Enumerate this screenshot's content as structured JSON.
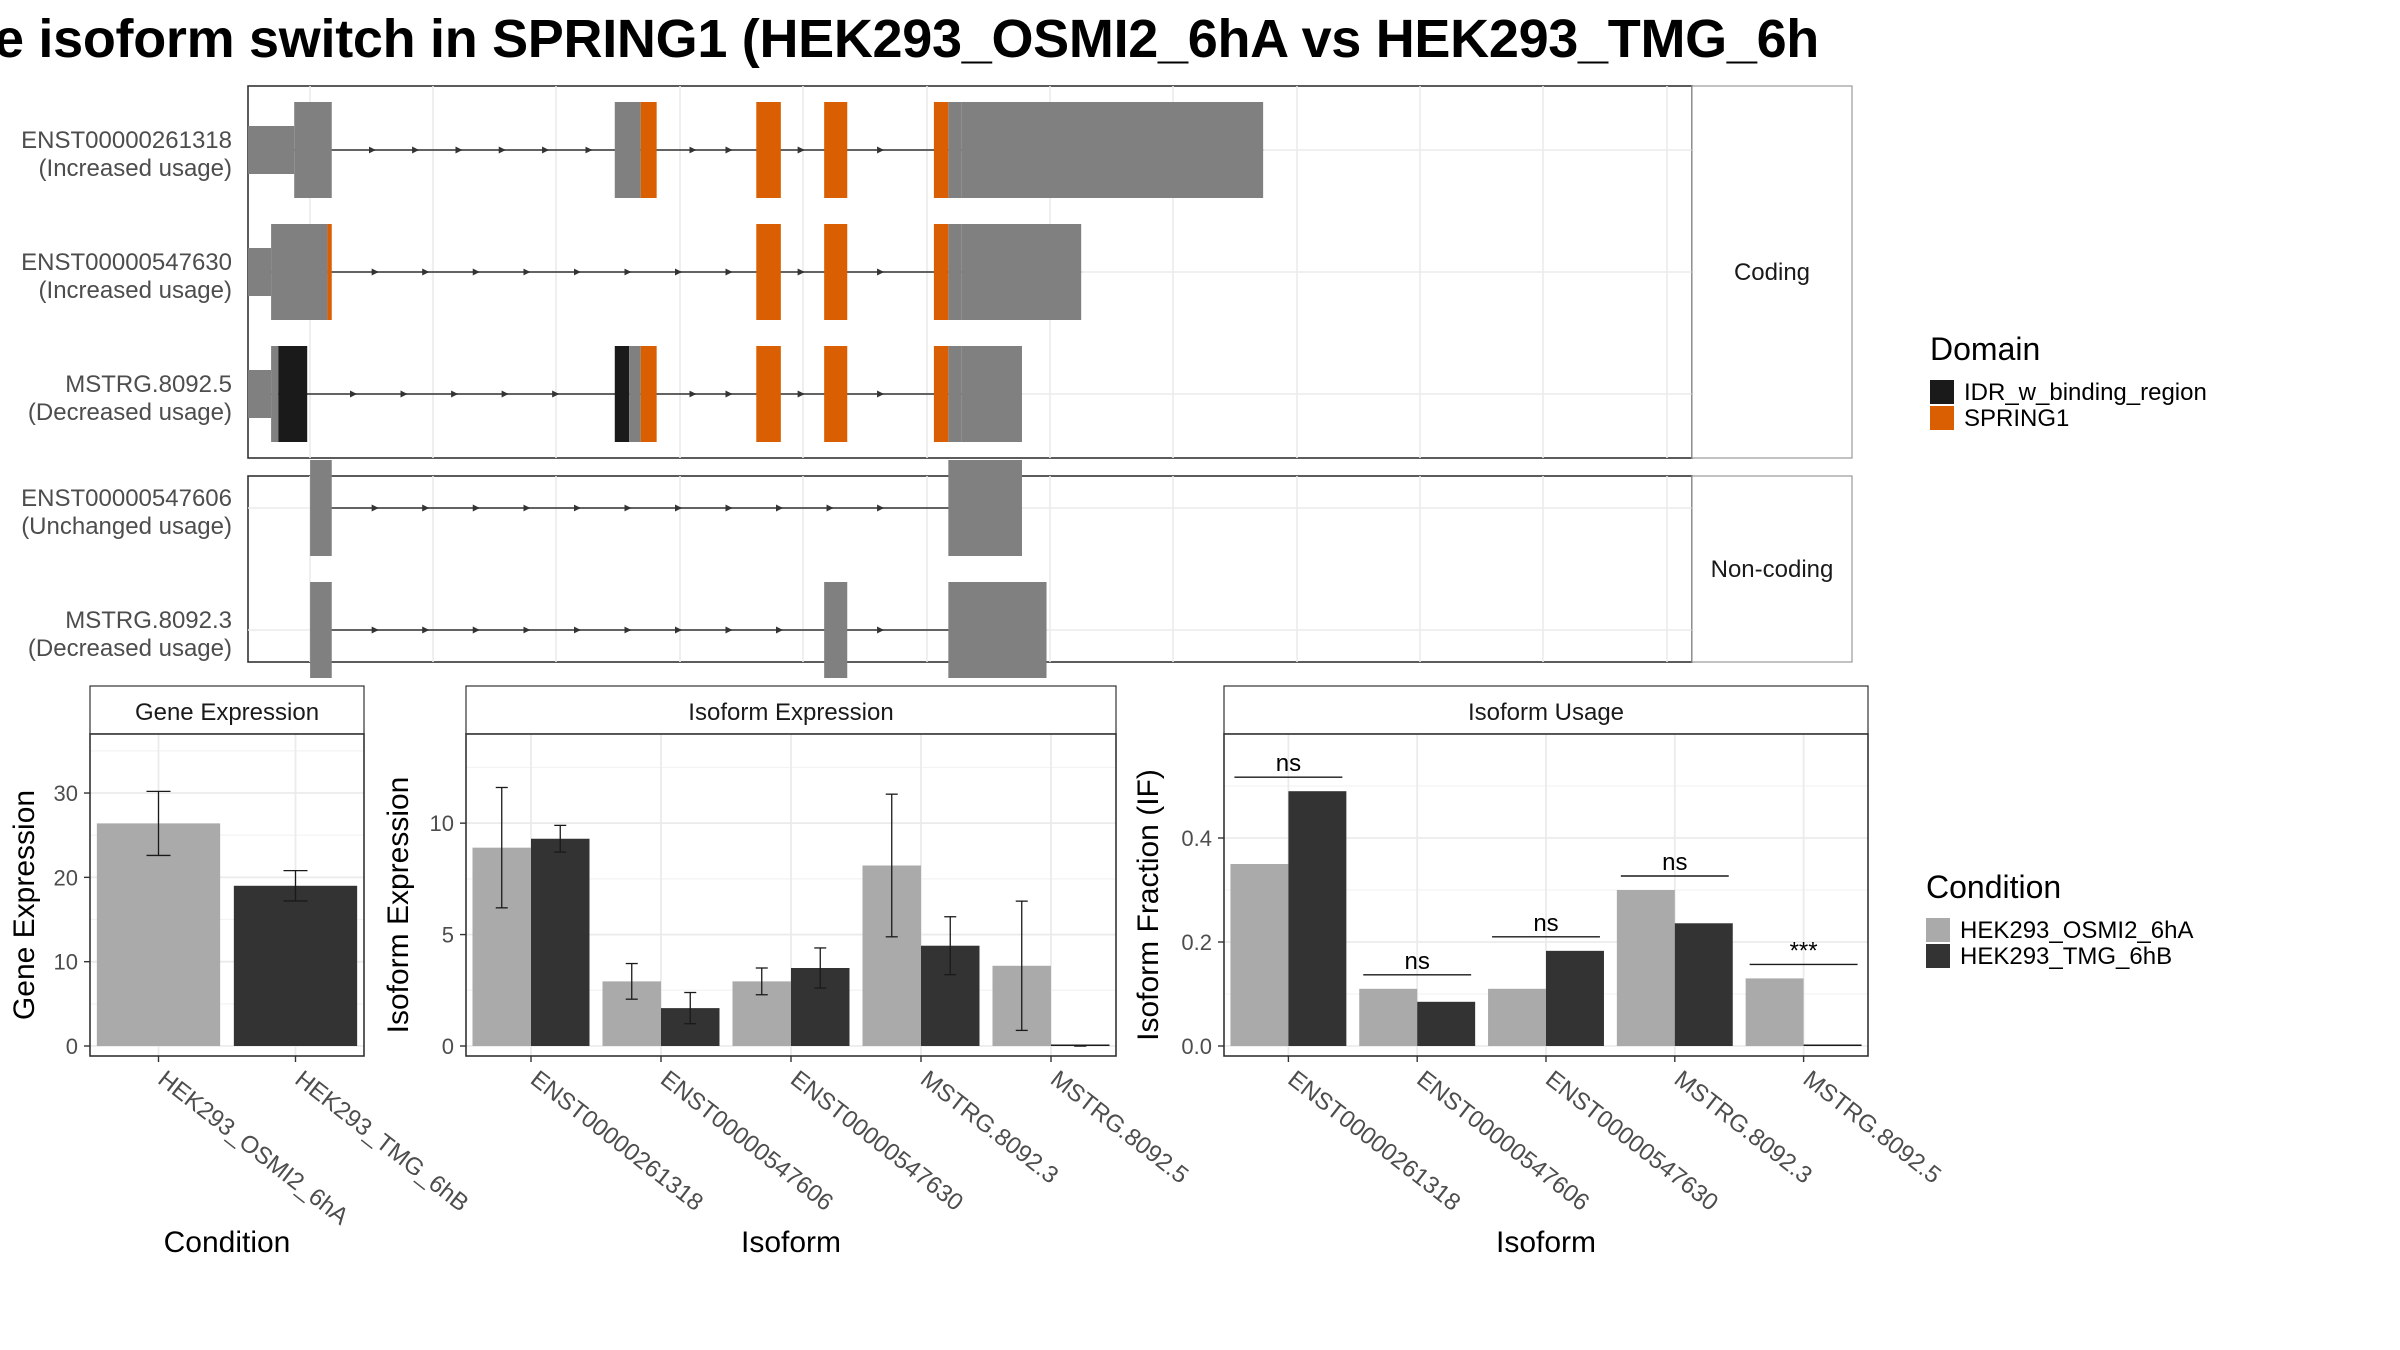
{
  "title": "e isoform switch in SPRING1 (HEK293_OSMI2_6hA vs HEK293_TMG_6h",
  "chart_data": [
    {
      "type": "gene-structure",
      "panels": [
        {
          "strip": "Coding",
          "transcripts": [
            {
              "id": "ENST00000261318",
              "usage": "(Increased usage)",
              "segments": [
                {
                  "kind": "utr",
                  "from": 0.0,
                  "to": 0.032
                },
                {
                  "kind": "cds",
                  "from": 0.032,
                  "to": 0.058
                },
                {
                  "kind": "cds",
                  "from": 0.254,
                  "to": 0.272
                },
                {
                  "kind": "SPRING1",
                  "from": 0.272,
                  "to": 0.283
                },
                {
                  "kind": "SPRING1",
                  "from": 0.352,
                  "to": 0.369
                },
                {
                  "kind": "SPRING1",
                  "from": 0.399,
                  "to": 0.415
                },
                {
                  "kind": "SPRING1",
                  "from": 0.475,
                  "to": 0.485
                },
                {
                  "kind": "cds",
                  "from": 0.485,
                  "to": 0.494
                },
                {
                  "kind": "cds",
                  "from": 0.494,
                  "to": 0.703
                }
              ],
              "arrows": [
                0.088,
                0.118,
                0.148,
                0.178,
                0.208,
                0.238,
                0.31,
                0.335,
                0.385,
                0.44
              ]
            },
            {
              "id": "ENST00000547630",
              "usage": "(Increased usage)",
              "segments": [
                {
                  "kind": "utr",
                  "from": 0.0,
                  "to": 0.016
                },
                {
                  "kind": "cds",
                  "from": 0.016,
                  "to": 0.055
                },
                {
                  "kind": "SPRING1",
                  "from": 0.055,
                  "to": 0.058
                },
                {
                  "kind": "SPRING1",
                  "from": 0.352,
                  "to": 0.369
                },
                {
                  "kind": "SPRING1",
                  "from": 0.399,
                  "to": 0.415
                },
                {
                  "kind": "SPRING1",
                  "from": 0.475,
                  "to": 0.485
                },
                {
                  "kind": "cds",
                  "from": 0.485,
                  "to": 0.494
                },
                {
                  "kind": "cds",
                  "from": 0.494,
                  "to": 0.577
                }
              ],
              "arrows": [
                0.09,
                0.125,
                0.16,
                0.195,
                0.23,
                0.265,
                0.3,
                0.335,
                0.385,
                0.44
              ]
            },
            {
              "id": "MSTRG.8092.5",
              "usage": "(Decreased usage)",
              "segments": [
                {
                  "kind": "utr",
                  "from": 0.0,
                  "to": 0.016
                },
                {
                  "kind": "cds",
                  "from": 0.016,
                  "to": 0.021
                },
                {
                  "kind": "IDR_w_binding_region",
                  "from": 0.021,
                  "to": 0.041
                },
                {
                  "kind": "IDR_w_binding_region",
                  "from": 0.254,
                  "to": 0.264
                },
                {
                  "kind": "cds",
                  "from": 0.264,
                  "to": 0.272
                },
                {
                  "kind": "SPRING1",
                  "from": 0.272,
                  "to": 0.283
                },
                {
                  "kind": "SPRING1",
                  "from": 0.352,
                  "to": 0.369
                },
                {
                  "kind": "SPRING1",
                  "from": 0.399,
                  "to": 0.415
                },
                {
                  "kind": "SPRING1",
                  "from": 0.475,
                  "to": 0.485
                },
                {
                  "kind": "cds",
                  "from": 0.485,
                  "to": 0.494
                },
                {
                  "kind": "cds",
                  "from": 0.494,
                  "to": 0.536
                }
              ],
              "arrows": [
                0.075,
                0.11,
                0.145,
                0.18,
                0.215,
                0.31,
                0.335,
                0.385,
                0.44
              ]
            }
          ]
        },
        {
          "strip": "Non-coding",
          "transcripts": [
            {
              "id": "ENST00000547606",
              "usage": "(Unchanged usage)",
              "segments": [
                {
                  "kind": "exon",
                  "from": 0.043,
                  "to": 0.058
                },
                {
                  "kind": "exon",
                  "from": 0.485,
                  "to": 0.536
                }
              ],
              "arrows": [
                0.09,
                0.125,
                0.16,
                0.195,
                0.23,
                0.265,
                0.3,
                0.335,
                0.37,
                0.405,
                0.44
              ]
            },
            {
              "id": "MSTRG.8092.3",
              "usage": "(Decreased usage)",
              "segments": [
                {
                  "kind": "exon",
                  "from": 0.043,
                  "to": 0.058
                },
                {
                  "kind": "exon",
                  "from": 0.399,
                  "to": 0.415
                },
                {
                  "kind": "exon",
                  "from": 0.485,
                  "to": 0.553
                }
              ],
              "arrows": [
                0.09,
                0.125,
                0.16,
                0.195,
                0.23,
                0.265,
                0.3,
                0.335,
                0.37,
                0.44
              ]
            }
          ]
        }
      ],
      "legend": {
        "title": "Domain",
        "entries": [
          {
            "name": "IDR_w_binding_region",
            "color": "#1a1a1a"
          },
          {
            "name": "SPRING1",
            "color": "#d95f02"
          }
        ]
      },
      "colors": {
        "exon": "#808080",
        "IDR_w_binding_region": "#1a1a1a",
        "SPRING1": "#d95f02"
      }
    },
    {
      "type": "bar",
      "strip": "Gene Expression",
      "xlabel": "Condition",
      "ylabel": "Gene Expression",
      "categories": [
        "HEK293_OSMI2_6hA",
        "HEK293_TMG_6hB"
      ],
      "values": [
        26.4,
        19.0
      ],
      "error_low": [
        22.6,
        17.2
      ],
      "error_high": [
        30.2,
        20.8
      ],
      "ylim": [
        0,
        37
      ],
      "yticks": [
        0,
        10,
        20,
        30
      ]
    },
    {
      "type": "bar",
      "strip": "Isoform Expression",
      "xlabel": "Isoform",
      "ylabel": "Isoform Expression",
      "categories": [
        "ENST00000261318",
        "ENST00000547606",
        "ENST00000547630",
        "MSTRG.8092.3",
        "MSTRG.8092.5"
      ],
      "series": [
        {
          "name": "HEK293_OSMI2_6hA",
          "values": [
            8.9,
            2.9,
            2.9,
            8.1,
            3.6
          ],
          "error_low": [
            6.2,
            2.1,
            2.3,
            4.9,
            0.7
          ],
          "error_high": [
            11.6,
            3.7,
            3.5,
            11.3,
            6.5
          ]
        },
        {
          "name": "HEK293_TMG_6hB",
          "values": [
            9.3,
            1.7,
            3.5,
            4.5,
            0.0
          ],
          "error_low": [
            8.7,
            1.0,
            2.6,
            3.2,
            0.0
          ],
          "error_high": [
            9.9,
            2.4,
            4.4,
            5.8,
            0.0
          ]
        }
      ],
      "ylim": [
        0,
        14
      ],
      "yticks": [
        0,
        5,
        10
      ]
    },
    {
      "type": "bar",
      "strip": "Isoform Usage",
      "xlabel": "Isoform",
      "ylabel": "Isoform Fraction (IF)",
      "categories": [
        "ENST00000261318",
        "ENST00000547606",
        "ENST00000547630",
        "MSTRG.8092.3",
        "MSTRG.8092.5"
      ],
      "series": [
        {
          "name": "HEK293_OSMI2_6hA",
          "values": [
            0.35,
            0.11,
            0.11,
            0.3,
            0.13
          ]
        },
        {
          "name": "HEK293_TMG_6hB",
          "values": [
            0.49,
            0.085,
            0.183,
            0.236,
            0.0
          ]
        }
      ],
      "significance": [
        "ns",
        "ns",
        "ns",
        "ns",
        "***"
      ],
      "ylim": [
        0,
        0.6
      ],
      "yticks": [
        0.0,
        0.2,
        0.4
      ],
      "ytick_labels": [
        "0.0",
        "0.2",
        "0.4"
      ]
    }
  ],
  "condition_legend": {
    "title": "Condition",
    "entries": [
      {
        "name": "HEK293_OSMI2_6hA",
        "color": "#aaaaaa"
      },
      {
        "name": "HEK293_TMG_6hB",
        "color": "#333333"
      }
    ]
  }
}
